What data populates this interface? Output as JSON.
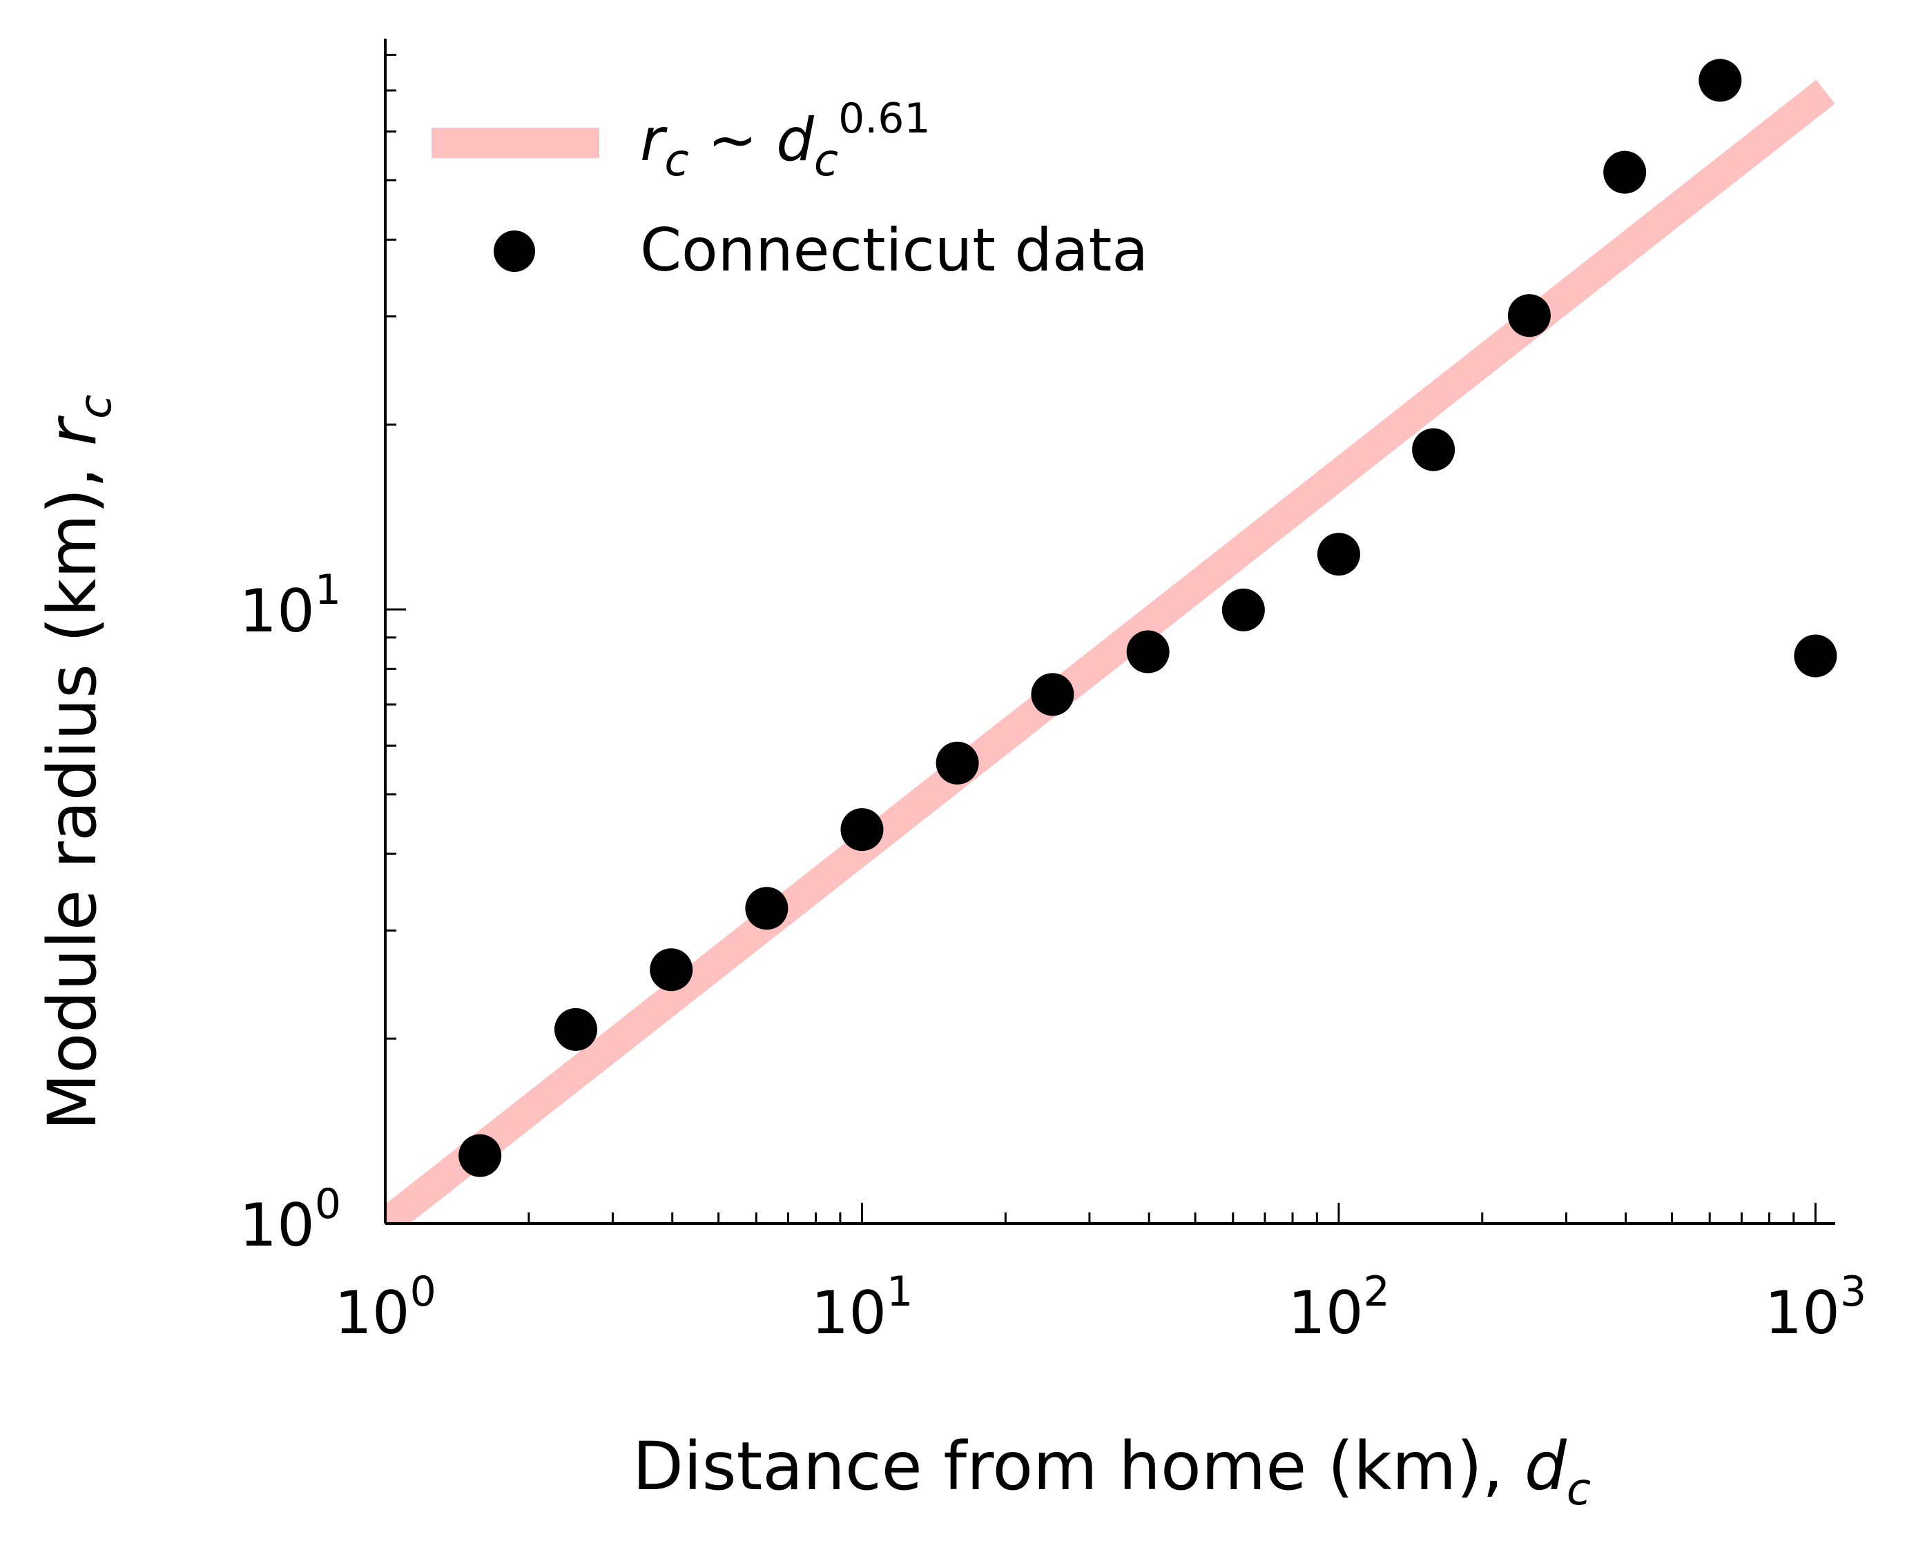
{
  "chart_data": {
    "type": "scatter",
    "xscale": "log",
    "yscale": "log",
    "xlim": [
      1,
      1100
    ],
    "ylim": [
      1,
      85
    ],
    "grid": false,
    "legend_position": "top-left",
    "xlabel": {
      "text": "Distance from home (km), ",
      "symbol": "d",
      "subscript": "c"
    },
    "ylabel": {
      "text": "Module radius (km), ",
      "symbol": "r",
      "subscript": "c"
    },
    "x_ticks": [
      {
        "value": 1,
        "base": "10",
        "exp": "0"
      },
      {
        "value": 10,
        "base": "10",
        "exp": "1"
      },
      {
        "value": 100,
        "base": "10",
        "exp": "2"
      },
      {
        "value": 1000,
        "base": "10",
        "exp": "3"
      }
    ],
    "y_ticks": [
      {
        "value": 1,
        "base": "10",
        "exp": "0"
      },
      {
        "value": 10,
        "base": "10",
        "exp": "1"
      }
    ],
    "series": [
      {
        "name": "r_c ~ d_c^0.61",
        "kind": "line",
        "color": "#ffc0c0",
        "legend_symbol": "r",
        "legend_symbol_sub": "c",
        "legend_relation": " ~ ",
        "legend_base": "d",
        "legend_base_sub": "c",
        "legend_exponent": "0.61",
        "exponent": 0.61,
        "coefficient": 1.0,
        "x_range": [
          1,
          1050
        ]
      },
      {
        "name": "Connecticut data",
        "kind": "scatter",
        "color": "#000000",
        "x": [
          1.58,
          2.51,
          3.98,
          6.31,
          10.0,
          15.85,
          25.1,
          39.8,
          63.1,
          100,
          158,
          251,
          398,
          631,
          1000
        ],
        "y": [
          1.29,
          2.07,
          2.59,
          3.26,
          4.38,
          5.62,
          7.27,
          8.53,
          9.98,
          12.3,
          18.2,
          30.1,
          51.5,
          72.7,
          8.4
        ]
      }
    ]
  }
}
